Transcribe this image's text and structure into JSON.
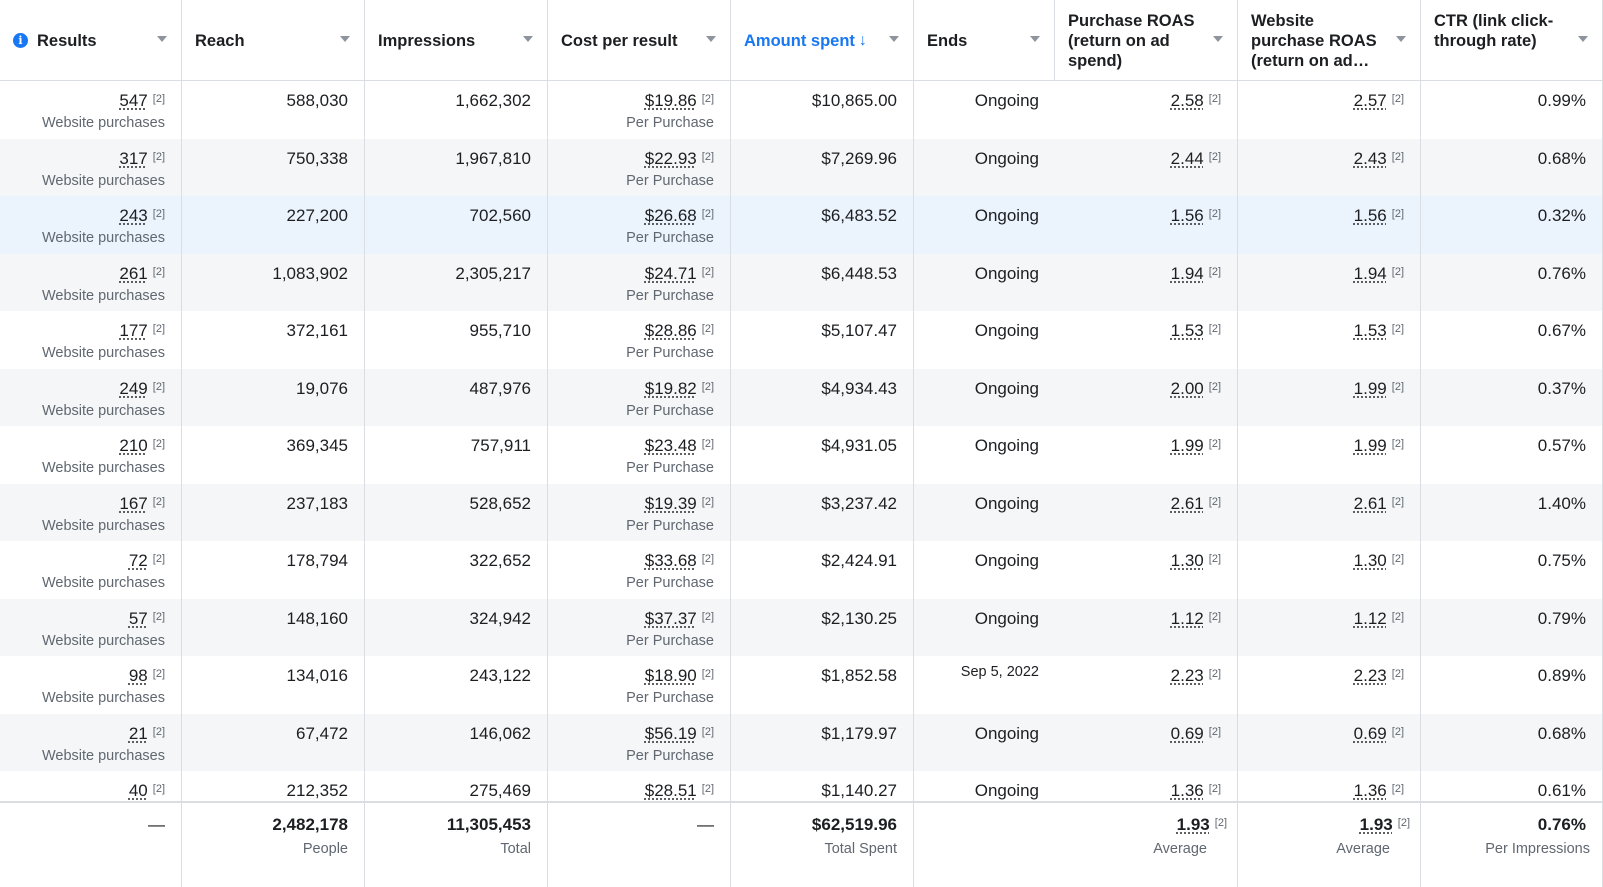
{
  "columns": [
    {
      "key": "results",
      "label": "Results"
    },
    {
      "key": "reach",
      "label": "Reach"
    },
    {
      "key": "impressions",
      "label": "Impressions"
    },
    {
      "key": "cpr",
      "label": "Cost per result"
    },
    {
      "key": "spent",
      "label": "Amount spent",
      "sort_icon": "arrow-down-icon",
      "sort_glyph": "↓"
    },
    {
      "key": "ends",
      "label": "Ends"
    },
    {
      "key": "roas",
      "label": "Purchase ROAS (return on ad spend)"
    },
    {
      "key": "wroas",
      "label": "Website purchase ROAS (return on ad…"
    },
    {
      "key": "ctr",
      "label": "CTR (link click-through rate)"
    }
  ],
  "footnote_marker": "[2]",
  "results_sub": "Website purchases",
  "cpr_sub": "Per Purchase",
  "rows": [
    {
      "results": "547",
      "reach": "588,030",
      "impressions": "1,662,302",
      "cpr": "$19.86",
      "spent": "$10,865.00",
      "ends": "Ongoing",
      "roas": "2.58",
      "wroas": "2.57",
      "ctr": "0.99%"
    },
    {
      "results": "317",
      "reach": "750,338",
      "impressions": "1,967,810",
      "cpr": "$22.93",
      "spent": "$7,269.96",
      "ends": "Ongoing",
      "roas": "2.44",
      "wroas": "2.43",
      "ctr": "0.68%"
    },
    {
      "results": "243",
      "reach": "227,200",
      "impressions": "702,560",
      "cpr": "$26.68",
      "spent": "$6,483.52",
      "ends": "Ongoing",
      "roas": "1.56",
      "wroas": "1.56",
      "ctr": "0.32%"
    },
    {
      "results": "261",
      "reach": "1,083,902",
      "impressions": "2,305,217",
      "cpr": "$24.71",
      "spent": "$6,448.53",
      "ends": "Ongoing",
      "roas": "1.94",
      "wroas": "1.94",
      "ctr": "0.76%"
    },
    {
      "results": "177",
      "reach": "372,161",
      "impressions": "955,710",
      "cpr": "$28.86",
      "spent": "$5,107.47",
      "ends": "Ongoing",
      "roas": "1.53",
      "wroas": "1.53",
      "ctr": "0.67%"
    },
    {
      "results": "249",
      "reach": "19,076",
      "impressions": "487,976",
      "cpr": "$19.82",
      "spent": "$4,934.43",
      "ends": "Ongoing",
      "roas": "2.00",
      "wroas": "1.99",
      "ctr": "0.37%"
    },
    {
      "results": "210",
      "reach": "369,345",
      "impressions": "757,911",
      "cpr": "$23.48",
      "spent": "$4,931.05",
      "ends": "Ongoing",
      "roas": "1.99",
      "wroas": "1.99",
      "ctr": "0.57%"
    },
    {
      "results": "167",
      "reach": "237,183",
      "impressions": "528,652",
      "cpr": "$19.39",
      "spent": "$3,237.42",
      "ends": "Ongoing",
      "roas": "2.61",
      "wroas": "2.61",
      "ctr": "1.40%"
    },
    {
      "results": "72",
      "reach": "178,794",
      "impressions": "322,652",
      "cpr": "$33.68",
      "spent": "$2,424.91",
      "ends": "Ongoing",
      "roas": "1.30",
      "wroas": "1.30",
      "ctr": "0.75%"
    },
    {
      "results": "57",
      "reach": "148,160",
      "impressions": "324,942",
      "cpr": "$37.37",
      "spent": "$2,130.25",
      "ends": "Ongoing",
      "roas": "1.12",
      "wroas": "1.12",
      "ctr": "0.79%"
    },
    {
      "results": "98",
      "reach": "134,016",
      "impressions": "243,122",
      "cpr": "$18.90",
      "spent": "$1,852.58",
      "ends": "Sep 5, 2022",
      "roas": "2.23",
      "wroas": "2.23",
      "ctr": "0.89%"
    },
    {
      "results": "21",
      "reach": "67,472",
      "impressions": "146,062",
      "cpr": "$56.19",
      "spent": "$1,179.97",
      "ends": "Ongoing",
      "roas": "0.69",
      "wroas": "0.69",
      "ctr": "0.68%"
    },
    {
      "results": "40",
      "reach": "212,352",
      "impressions": "275,469",
      "cpr": "$28.51",
      "spent": "$1,140.27",
      "ends": "Ongoing",
      "roas": "1.36",
      "wroas": "1.36",
      "ctr": "0.61%"
    }
  ],
  "totals": {
    "results": "—",
    "reach": "2,482,178",
    "reach_sub": "People",
    "impressions": "11,305,453",
    "impressions_sub": "Total",
    "cpr": "—",
    "spent": "$62,519.96",
    "spent_sub": "Total Spent",
    "roas": "1.93",
    "roas_sub": "Average",
    "wroas": "1.93",
    "wroas_sub": "Average",
    "ctr": "0.76%",
    "ctr_sub": "Per Impressions"
  },
  "colors": {
    "accent": "#1877f2",
    "alt_row": "#f5f6f7",
    "highlight_row": "#ebf3fd"
  }
}
